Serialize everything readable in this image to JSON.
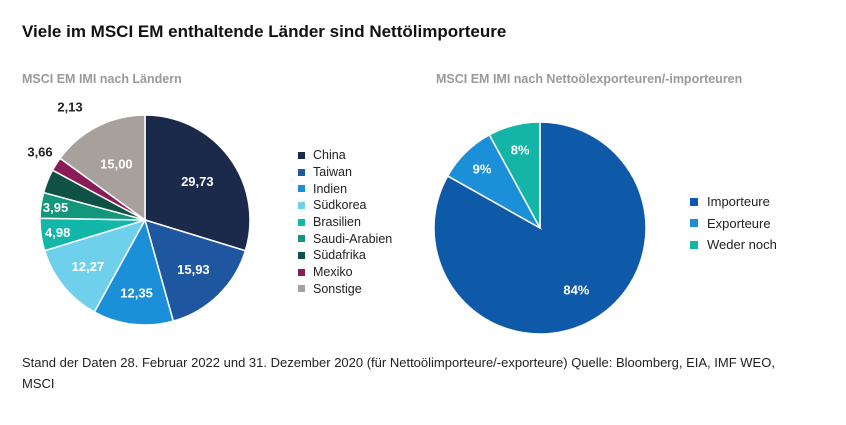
{
  "title": "Viele im MSCI EM enthaltende Länder sind Nettölimporteure",
  "footnote": "Stand der Daten 28. Februar 2022 und 31. Dezember 2020 (für Nettoölimporteure/-exporteure) Quelle: Bloomberg, EIA, IMF WEO, MSCI",
  "chart_data": [
    {
      "type": "pie",
      "title": "MSCI EM IMI nach Ländern",
      "categories": [
        "China",
        "Taiwan",
        "Indien",
        "Südkorea",
        "Brasilien",
        "Saudi-Arabien",
        "Südafrika",
        "Mexiko",
        "Sonstige"
      ],
      "values": [
        29.73,
        15.93,
        12.35,
        12.27,
        4.98,
        3.95,
        3.66,
        2.13,
        15.0
      ],
      "labels": [
        "29,73",
        "15,93",
        "12,35",
        "12,27",
        "4,98",
        "3,95",
        "3,66",
        "2,13",
        "15,00"
      ],
      "colors": [
        "#1b2a4a",
        "#1e56a0",
        "#1b8fd8",
        "#6fd0ec",
        "#13b7aa",
        "#14967a",
        "#0f5144",
        "#8a1b55",
        "#a7a09d"
      ],
      "legend_position": "right"
    },
    {
      "type": "pie",
      "title": "MSCI EM IMI nach Nettoölexporteuren/-importeuren",
      "categories": [
        "Importeure",
        "Exporteure",
        "Weder noch"
      ],
      "values": [
        84,
        9,
        8
      ],
      "labels": [
        "84%",
        "9%",
        "8%"
      ],
      "colors": [
        "#0f5aa8",
        "#1b8fd8",
        "#14b5a6"
      ],
      "legend_position": "right"
    }
  ]
}
